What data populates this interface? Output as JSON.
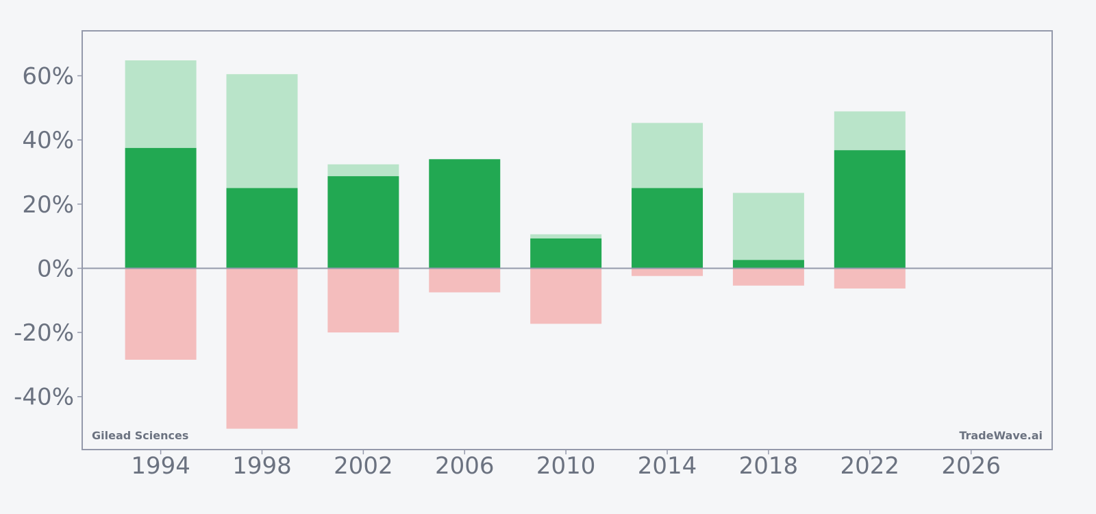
{
  "chart_data": {
    "type": "bar",
    "categories": [
      "1994",
      "1998",
      "2002",
      "2006",
      "2010",
      "2014",
      "2018",
      "2022"
    ],
    "series": [
      {
        "values": [
          37.5,
          25.0,
          28.7,
          34.0,
          9.3,
          25.0,
          2.6,
          36.8
        ]
      },
      {
        "values": [
          64.8,
          60.5,
          32.4,
          34.0,
          10.6,
          45.3,
          23.5,
          48.9
        ]
      },
      {
        "values": [
          -28.5,
          -50.0,
          -20.0,
          -7.5,
          -17.3,
          -2.4,
          -5.4,
          -6.3
        ]
      }
    ],
    "x_axis": {
      "ticks": [
        "1994",
        "1998",
        "2002",
        "2006",
        "2010",
        "2014",
        "2018",
        "2022",
        "2026"
      ],
      "range": [
        1990.9,
        2029.2
      ]
    },
    "y_axis": {
      "ticks": [
        60,
        40,
        20,
        0,
        -20,
        -40
      ],
      "tick_suffix": "%",
      "range": [
        -56.5,
        74
      ]
    },
    "grid": false,
    "colors": {
      "dark_green": "#22a852",
      "light_green": "#b9e4c9",
      "light_red": "#f4bdbd",
      "axis": "#9499ab",
      "text": "#6b7280",
      "background": "#f5f6f8"
    },
    "annotations": {
      "left": "Gilead Sciences",
      "right": "TradeWave.ai"
    }
  }
}
